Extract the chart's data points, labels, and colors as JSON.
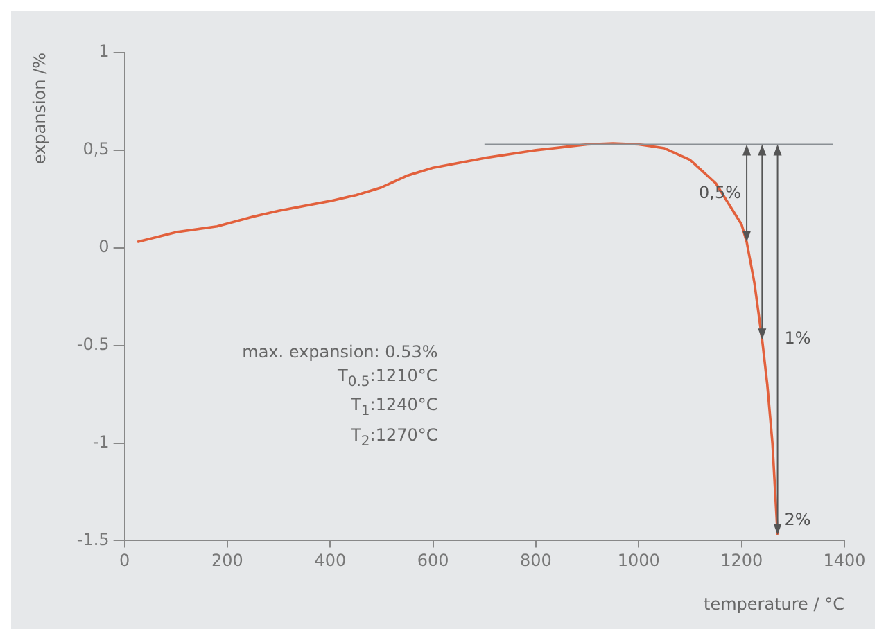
{
  "chart_data": {
    "type": "line",
    "xlabel": "temperature / °C",
    "ylabel": "expansion /%",
    "x": [
      25,
      100,
      180,
      250,
      300,
      400,
      450,
      500,
      550,
      600,
      700,
      800,
      900,
      950,
      1000,
      1050,
      1100,
      1150,
      1200,
      1210,
      1225,
      1240,
      1250,
      1260,
      1270
    ],
    "series": [
      {
        "color": "#e2603c",
        "values": [
          0.03,
          0.08,
          0.11,
          0.16,
          0.19,
          0.24,
          0.27,
          0.31,
          0.37,
          0.41,
          0.46,
          0.5,
          0.53,
          0.535,
          0.53,
          0.51,
          0.45,
          0.33,
          0.12,
          0.03,
          -0.18,
          -0.47,
          -0.7,
          -1.0,
          -1.47
        ]
      }
    ],
    "xlim": [
      0,
      1400
    ],
    "xticks": [
      0,
      200,
      400,
      600,
      800,
      1000,
      1200,
      1400
    ],
    "ylim": [
      -1.5,
      1
    ],
    "yticks": [
      -1.5,
      -1,
      {
        "value": -0.5,
        "label": "-0.5"
      },
      0,
      {
        "value": 0.5,
        "label": "0,5"
      },
      1
    ],
    "grid": false,
    "legend": false,
    "marker": "none",
    "line_style": "solid",
    "ref_lines": [
      {
        "axis": "y",
        "value": 0.53,
        "color": "#8a8f94"
      }
    ],
    "annotations": [
      {
        "text": "0,5%",
        "x": 1210,
        "y": 0.03
      },
      {
        "text": "1%",
        "x": 1240,
        "y": -0.47
      },
      {
        "text": "2%",
        "x": 1270,
        "y": -1.47
      },
      "max. expansion: 0.53%",
      "T$_{0.5}$:1210°C",
      "T$_{1}$:1240°C",
      "T$_{2}$:1270°C"
    ]
  }
}
